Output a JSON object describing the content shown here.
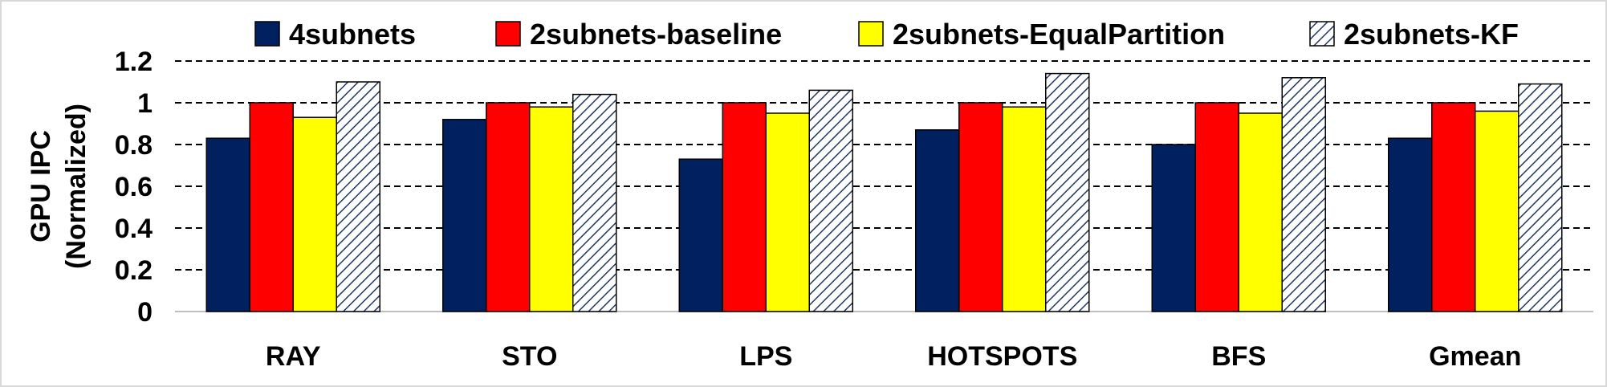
{
  "chart_data": {
    "type": "bar",
    "title": "",
    "xlabel": "",
    "ylabel": [
      "GPU IPC",
      "(Normalized)"
    ],
    "ylim": [
      0,
      1.2
    ],
    "yticks": [
      0,
      0.2,
      0.4,
      0.6,
      0.8,
      1,
      1.2
    ],
    "ytick_labels": [
      "0",
      "0.2",
      "0.4",
      "0.6",
      "0.8",
      "1",
      "1.2"
    ],
    "grid": "horizontal dashed",
    "legend_position": "top",
    "categories": [
      "RAY",
      "STO",
      "LPS",
      "HOTSPOTS",
      "BFS",
      "Gmean"
    ],
    "series": [
      {
        "name": "4subnets",
        "color": "#002060",
        "pattern": "solid",
        "values": [
          0.83,
          0.92,
          0.73,
          0.87,
          0.8,
          0.83
        ]
      },
      {
        "name": "2subnets-baseline",
        "color": "#ff0000",
        "pattern": "solid",
        "values": [
          1.0,
          1.0,
          1.0,
          1.0,
          1.0,
          1.0
        ]
      },
      {
        "name": "2subnets-EqualPartition",
        "color": "#ffff00",
        "pattern": "solid",
        "values": [
          0.93,
          0.98,
          0.95,
          0.98,
          0.95,
          0.96
        ]
      },
      {
        "name": "2subnets-KF",
        "color": "#ffffff",
        "pattern": "diagonal-hatch",
        "values": [
          1.1,
          1.04,
          1.06,
          1.14,
          1.12,
          1.09
        ]
      }
    ]
  }
}
